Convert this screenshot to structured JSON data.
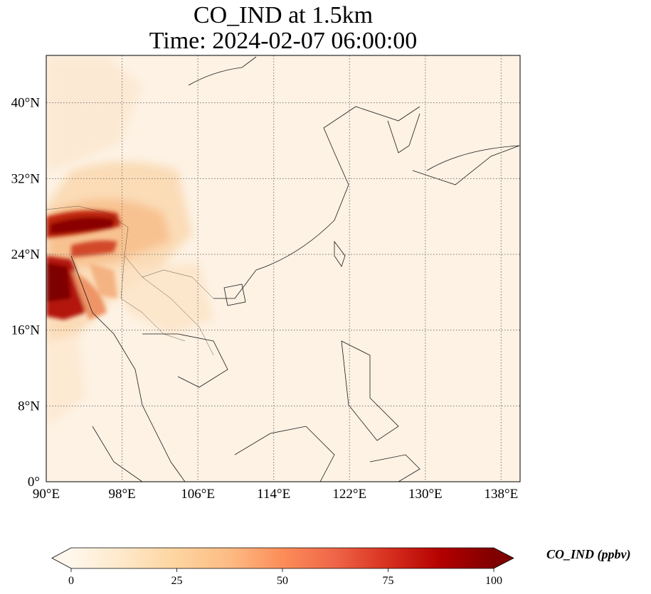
{
  "title_line1": "CO_IND at 1.5km",
  "title_line2": "Time: 2024-02-07 06:00:00",
  "map": {
    "lon_range": [
      90,
      140
    ],
    "lat_range": [
      0,
      45
    ],
    "lon_ticks": [
      "90°E",
      "98°E",
      "106°E",
      "114°E",
      "122°E",
      "130°E",
      "138°E"
    ],
    "lat_ticks": [
      "0°",
      "8°N",
      "16°N",
      "24°N",
      "32°N",
      "40°N"
    ],
    "gridlines": true,
    "colormap": "OrRd"
  },
  "colorbar": {
    "label": "CO_IND (ppbv)",
    "ticks": [
      "0",
      "25",
      "50",
      "75",
      "100"
    ],
    "min": 0,
    "max": 100,
    "extend": "both",
    "colors": [
      "#fff7ec",
      "#fee8c8",
      "#fdd49e",
      "#fdbb84",
      "#fc8d59",
      "#ef6548",
      "#d7301f",
      "#b30000",
      "#7f0000"
    ]
  }
}
